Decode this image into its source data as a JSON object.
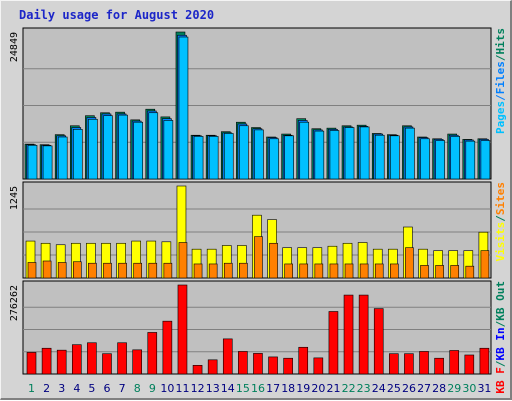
{
  "title": "Daily usage for August 2020",
  "colors": {
    "pages": "#00c0ff",
    "files": "#0080ff",
    "hits": "#00805c",
    "visits": "#ffff00",
    "sites": "#ff8000",
    "kbf": "#ff0000",
    "kbin": "#0000ff",
    "kbout": "#00805c",
    "plot_bg": "#c0c0c0",
    "weekend_day_label": "#00805c",
    "weekday_label": "#000080"
  },
  "chart_data": [
    {
      "type": "bar",
      "panel": "top",
      "ymax_label": "24849",
      "ylim": [
        0,
        24849
      ],
      "right_legend": [
        {
          "text": "Pages",
          "color": "#00c0ff"
        },
        {
          "text": "/",
          "color": "#0080ff"
        },
        {
          "text": "Files",
          "color": "#0080ff"
        },
        {
          "text": "/",
          "color": "#00805c"
        },
        {
          "text": "Hits",
          "color": "#00805c"
        }
      ],
      "categories": [
        "1",
        "2",
        "3",
        "4",
        "5",
        "6",
        "7",
        "8",
        "9",
        "10",
        "11",
        "12",
        "13",
        "14",
        "15",
        "16",
        "17",
        "18",
        "19",
        "20",
        "21",
        "22",
        "23",
        "24",
        "25",
        "26",
        "27",
        "28",
        "29",
        "30",
        "31"
      ],
      "series": [
        {
          "name": "Hits",
          "values": [
            5900,
            5800,
            7500,
            9000,
            10700,
            11200,
            11300,
            10000,
            11800,
            10500,
            24849,
            7400,
            7400,
            8000,
            9600,
            8700,
            7100,
            7600,
            10200,
            8500,
            8600,
            9000,
            9100,
            7700,
            7500,
            9000,
            7100,
            6800,
            7600,
            6700,
            6800
          ]
        },
        {
          "name": "Files",
          "values": [
            5800,
            5700,
            7300,
            8700,
            10400,
            11000,
            11000,
            9800,
            11500,
            10200,
            24300,
            7300,
            7300,
            7800,
            9300,
            8500,
            7000,
            7400,
            9900,
            8300,
            8400,
            8800,
            8900,
            7600,
            7400,
            8800,
            7000,
            6700,
            7400,
            6600,
            6700
          ]
        },
        {
          "name": "Pages",
          "values": [
            5700,
            5600,
            7100,
            8400,
            10100,
            10700,
            10800,
            9600,
            11200,
            9900,
            24000,
            7200,
            7200,
            7700,
            9000,
            8300,
            6800,
            7300,
            9600,
            8100,
            8200,
            8700,
            8800,
            7400,
            7300,
            8600,
            6800,
            6500,
            7200,
            6400,
            6500
          ]
        }
      ]
    },
    {
      "type": "bar",
      "panel": "middle",
      "ymax_label": "1245",
      "ylim": [
        0,
        1245
      ],
      "right_legend": [
        {
          "text": "Visits",
          "color": "#ffff00"
        },
        {
          "text": "/",
          "color": "#00805c"
        },
        {
          "text": "Sites",
          "color": "#ff8000"
        }
      ],
      "categories": [
        "1",
        "2",
        "3",
        "4",
        "5",
        "6",
        "7",
        "8",
        "9",
        "10",
        "11",
        "12",
        "13",
        "14",
        "15",
        "16",
        "17",
        "18",
        "19",
        "20",
        "21",
        "22",
        "23",
        "24",
        "25",
        "26",
        "27",
        "28",
        "29",
        "30",
        "31"
      ],
      "series": [
        {
          "name": "Visits",
          "values": [
            500,
            470,
            450,
            470,
            470,
            470,
            470,
            500,
            500,
            490,
            1245,
            390,
            390,
            440,
            440,
            850,
            790,
            410,
            410,
            410,
            430,
            470,
            480,
            390,
            390,
            690,
            390,
            370,
            370,
            370,
            620
          ]
        },
        {
          "name": "Sites",
          "values": [
            210,
            230,
            210,
            220,
            200,
            200,
            200,
            200,
            200,
            200,
            480,
            190,
            190,
            200,
            200,
            560,
            470,
            190,
            190,
            190,
            190,
            190,
            190,
            190,
            190,
            410,
            170,
            170,
            170,
            160,
            370
          ]
        }
      ]
    },
    {
      "type": "bar",
      "panel": "bottom",
      "ymax_label": "276262",
      "ylim": [
        0,
        276262
      ],
      "right_legend": [
        {
          "text": "KB F",
          "color": "#ff0000"
        },
        {
          "text": "/",
          "color": "#00805c"
        },
        {
          "text": "KB In",
          "color": "#0000ff"
        },
        {
          "text": "/",
          "color": "#00805c"
        },
        {
          "text": "KB Out",
          "color": "#00805c"
        }
      ],
      "categories": [
        "1",
        "2",
        "3",
        "4",
        "5",
        "6",
        "7",
        "8",
        "9",
        "10",
        "11",
        "12",
        "13",
        "14",
        "15",
        "16",
        "17",
        "18",
        "19",
        "20",
        "21",
        "22",
        "23",
        "24",
        "25",
        "26",
        "27",
        "28",
        "29",
        "30",
        "31"
      ],
      "series": [
        {
          "name": "KB F",
          "values": [
            67000,
            80000,
            74000,
            91000,
            97000,
            63000,
            97000,
            75000,
            129000,
            164000,
            276262,
            27000,
            44000,
            109000,
            70000,
            64000,
            53000,
            49000,
            83000,
            50000,
            194000,
            245000,
            245000,
            203000,
            63000,
            63000,
            70000,
            49000,
            73000,
            59000,
            80000
          ]
        }
      ]
    }
  ],
  "weekend_days": [
    1,
    8,
    9,
    15,
    16,
    22,
    23,
    29,
    30
  ]
}
